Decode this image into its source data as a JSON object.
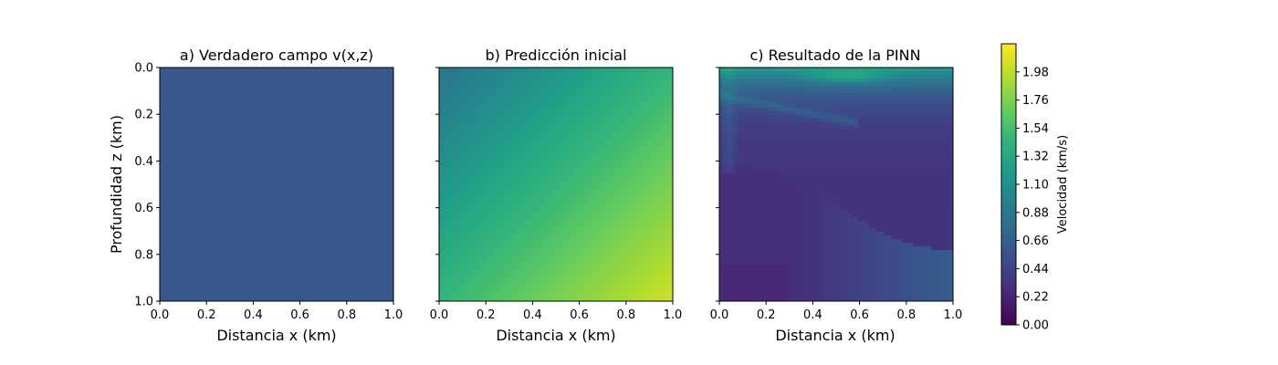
{
  "chart_data": {
    "type": "heatmap",
    "colormap": "viridis",
    "panels": [
      {
        "title": "a) Verdadero campo v(x,z)",
        "xlabel": "Distancia x (km)",
        "ylabel": "Profundidad z (km)",
        "xlim": [
          0.0,
          1.0
        ],
        "ylim": [
          1.0,
          0.0
        ],
        "xticks": [
          "0.0",
          "0.2",
          "0.4",
          "0.6",
          "0.8",
          "1.0"
        ],
        "yticks": [
          "0.0",
          "0.2",
          "0.4",
          "0.6",
          "0.8",
          "1.0"
        ],
        "field": "constant",
        "value": 0.6
      },
      {
        "title": "b) Predicción inicial",
        "xlabel": "Distancia x (km)",
        "ylabel": "",
        "xlim": [
          0.0,
          1.0
        ],
        "ylim": [
          1.0,
          0.0
        ],
        "xticks": [
          "0.0",
          "0.2",
          "0.4",
          "0.6",
          "0.8",
          "1.0"
        ],
        "yticks": [],
        "field": "gradient",
        "corner_values": {
          "top_left": 0.85,
          "top_right": 1.35,
          "bottom_left": 1.55,
          "bottom_right": 2.05
        }
      },
      {
        "title": "c) Resultado de la PINN",
        "xlabel": "Distancia x (km)",
        "ylabel": "",
        "xlim": [
          0.0,
          1.0
        ],
        "ylim": [
          1.0,
          0.0
        ],
        "xticks": [
          "0.0",
          "0.2",
          "0.4",
          "0.6",
          "0.8",
          "1.0"
        ],
        "yticks": [],
        "field": "pinn",
        "approx_values": {
          "top": 0.9,
          "bottom_left": 0.25,
          "bottom_right": 0.7,
          "max_near_surface": 1.3
        }
      }
    ],
    "colorbar": {
      "label": "Velocidad (km/s)",
      "range": [
        0.0,
        2.2
      ],
      "ticks": [
        "0.00",
        "0.22",
        "0.44",
        "0.66",
        "0.88",
        "1.10",
        "1.32",
        "1.54",
        "1.76",
        "1.98"
      ]
    }
  }
}
